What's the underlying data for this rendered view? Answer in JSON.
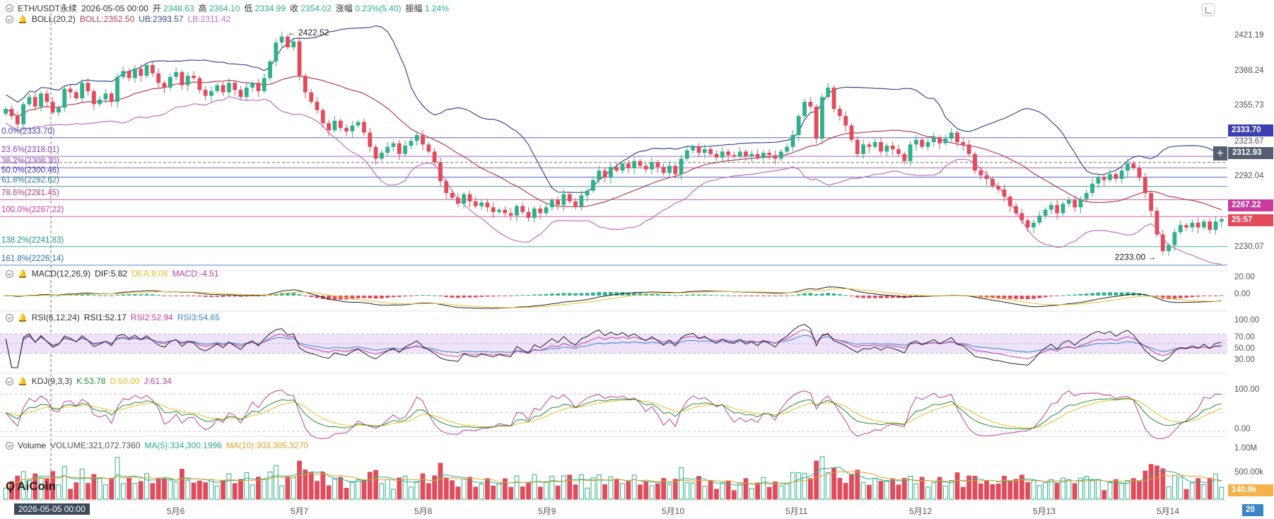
{
  "header": {
    "symbol": "ETH/USDT永续",
    "datetime": "2026-05-05 00:00",
    "open_label": "开",
    "open": "2348.63",
    "high_label": "高",
    "high": "2364.10",
    "low_label": "低",
    "low": "2334.99",
    "close_label": "收",
    "close": "2354.02",
    "change_label": "涨幅",
    "change": "0.23%(5.40)",
    "amp_label": "振幅",
    "amp": "1.24%"
  },
  "boll": {
    "name": "BOLL(20,2)",
    "boll": "BOLL:2352.50",
    "ub": "UB:2393.57",
    "lb": "LB:2311.42"
  },
  "macd": {
    "name": "MACD(12,26,9)",
    "dif": "DIF:5.82",
    "dea": "DEA:8.08",
    "macd": "MACD:-4.51"
  },
  "rsi": {
    "name": "RSI(6,12,24)",
    "rsi1": "RSI1:52.17",
    "rsi2": "RSI2:52.94",
    "rsi3": "RSI3:54.65"
  },
  "kdj": {
    "name": "KDJ(9,3,3)",
    "k": "K:53.78",
    "d": "D:50.00",
    "j": "J:61.34"
  },
  "volume": {
    "name": "Volume",
    "vol": "VOLUME:321,072.7360",
    "ma5": "MA(5):334,300.1996",
    "ma10": "MA(10):303,305.3270"
  },
  "fib_levels": [
    {
      "label": "0.0%(2333.70)",
      "price": 2333.7,
      "color": "#3b3fb0"
    },
    {
      "label": "23.6%(2318.01)",
      "price": 2318.01,
      "color": "#8a3fb0"
    },
    {
      "label": "38.2%(2308.30)",
      "price": 2308.3,
      "color": "#8a3fb0"
    },
    {
      "label": "50.0%(2300.46)",
      "price": 2300.46,
      "color": "#3b3fb0"
    },
    {
      "label": "61.8%(2292.62)",
      "price": 2292.62,
      "color": "#2a7f8a"
    },
    {
      "label": "78.6%(2281.45)",
      "price": 2281.45,
      "color": "#b03f8a"
    },
    {
      "label": "100.0%(2267.22)",
      "price": 2267.22,
      "color": "#cc3a9e"
    },
    {
      "label": "138.2%(2241.83)",
      "price": 2241.83,
      "color": "#1a9a80"
    },
    {
      "label": "161.8%(2226.14)",
      "price": 2226.14,
      "color": "#2a6fb0"
    }
  ],
  "price_axis": {
    "ticks": [
      "2421.19",
      "2388.24",
      "2355.73",
      "2323.67",
      "2292.04",
      "2230.07"
    ],
    "tag_fib0": "2333.70",
    "tag_cross": "2312.93",
    "tag_fib100": "2267.22",
    "tag_countdown": "25:57",
    "macd_ticks": [
      "20.00",
      "0.00"
    ],
    "rsi_ticks": [
      "100.00",
      "70.00",
      "50.00",
      "30.00"
    ],
    "kdj_ticks": [
      "100.00",
      "0.00"
    ],
    "vol_ticks": [
      "1.00M",
      "500.00k"
    ],
    "vol_tag": "140.9k"
  },
  "annotations": {
    "high_mark": "2422.52",
    "low_mark": "2233.00"
  },
  "time_axis": {
    "labels": [
      "5月6",
      "5月7",
      "5月8",
      "5月9",
      "5月10",
      "5月11",
      "5月12",
      "5月13",
      "5月14"
    ],
    "cursor_time": "2026-05-05 00:00",
    "right_edge": "20"
  },
  "logo": "AiCoin",
  "colors": {
    "up": "#2fb08a",
    "down": "#e24b5b",
    "boll_mid": "#b0405a",
    "boll_ub": "#3b4a8a",
    "boll_lb": "#c070c0",
    "rsi_band": "#efe3fa"
  },
  "chart_data": {
    "type": "candlestick",
    "interval": "1h",
    "price_range": [
      2222,
      2432
    ],
    "closes": [
      2358,
      2352,
      2345,
      2362,
      2368,
      2360,
      2371,
      2364,
      2355,
      2359,
      2375,
      2372,
      2367,
      2380,
      2373,
      2362,
      2366,
      2371,
      2364,
      2385,
      2390,
      2384,
      2392,
      2386,
      2395,
      2388,
      2380,
      2376,
      2385,
      2389,
      2378,
      2386,
      2384,
      2374,
      2369,
      2373,
      2378,
      2372,
      2380,
      2374,
      2368,
      2376,
      2380,
      2373,
      2384,
      2398,
      2414,
      2419,
      2410,
      2415,
      2386,
      2372,
      2364,
      2357,
      2346,
      2340,
      2348,
      2342,
      2339,
      2344,
      2347,
      2338,
      2326,
      2316,
      2321,
      2326,
      2329,
      2320,
      2327,
      2331,
      2336,
      2328,
      2322,
      2313,
      2297,
      2287,
      2283,
      2278,
      2286,
      2280,
      2276,
      2279,
      2275,
      2271,
      2273,
      2270,
      2268,
      2276,
      2271,
      2266,
      2274,
      2270,
      2275,
      2281,
      2277,
      2286,
      2280,
      2276,
      2285,
      2289,
      2298,
      2306,
      2300,
      2309,
      2306,
      2312,
      2308,
      2314,
      2310,
      2307,
      2313,
      2309,
      2304,
      2310,
      2303,
      2316,
      2323,
      2326,
      2321,
      2324,
      2320,
      2317,
      2322,
      2319,
      2318,
      2322,
      2318,
      2320,
      2317,
      2321,
      2319,
      2316,
      2322,
      2326,
      2336,
      2352,
      2364,
      2360,
      2333,
      2368,
      2376,
      2358,
      2352,
      2344,
      2332,
      2320,
      2328,
      2326,
      2330,
      2322,
      2327,
      2324,
      2320,
      2314,
      2328,
      2332,
      2326,
      2330,
      2334,
      2329,
      2333,
      2338,
      2330,
      2328,
      2320,
      2306,
      2302,
      2299,
      2293,
      2290,
      2284,
      2276,
      2270,
      2264,
      2258,
      2262,
      2268,
      2273,
      2277,
      2270,
      2278,
      2281,
      2275,
      2282,
      2287,
      2295,
      2300,
      2298,
      2303,
      2299,
      2306,
      2312,
      2308,
      2300,
      2287,
      2272,
      2252,
      2238,
      2243,
      2254,
      2260,
      2258,
      2262,
      2258,
      2263,
      2256,
      2263,
      2265
    ],
    "extremes": {
      "high": 2422.52,
      "low": 2233.0
    },
    "boll_last": {
      "mid": 2352.5,
      "ub": 2393.57,
      "lb": 2311.42
    },
    "fib_range": {
      "start": 2333.7,
      "end": 2267.22
    },
    "macd_last": {
      "dif": 5.82,
      "dea": 8.08,
      "macd": -4.51
    },
    "rsi_last": {
      "rsi1": 52.17,
      "rsi2": 52.94,
      "rsi3": 54.65
    },
    "kdj_last": {
      "k": 53.78,
      "d": 50.0,
      "j": 61.34
    },
    "volume_last": 321072.736,
    "volume_ma5": 334300.1996,
    "volume_ma10": 303305.327
  }
}
